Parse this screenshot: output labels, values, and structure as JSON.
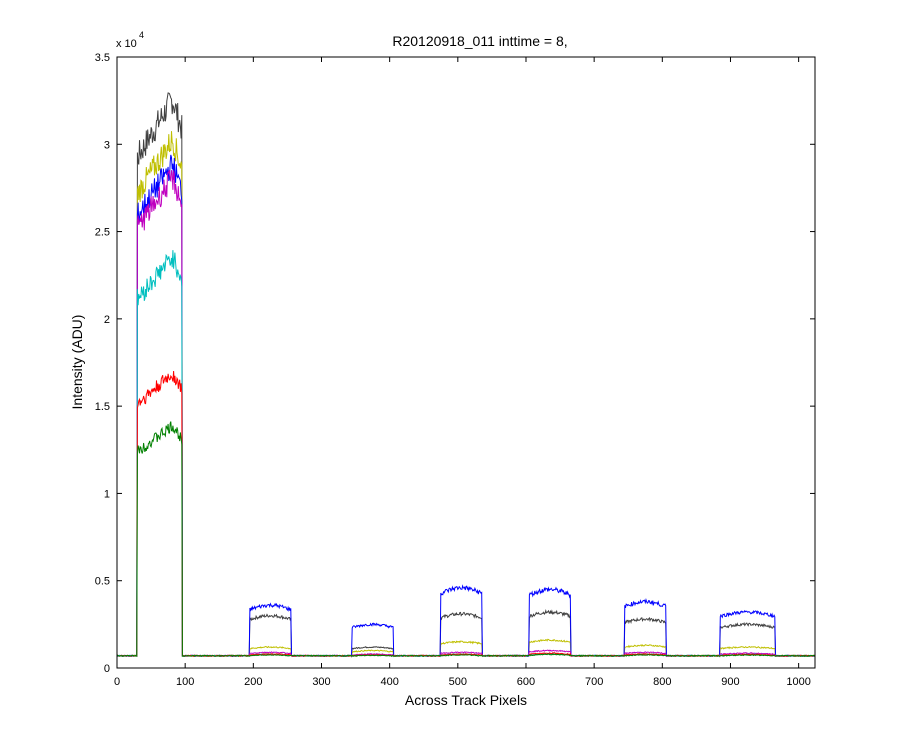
{
  "chart_data": {
    "type": "line",
    "title": "R20120918_011 inttime = 8,",
    "xlabel": "Across Track Pixels",
    "ylabel": "Intensity (ADU)",
    "xlim": [
      0,
      1024
    ],
    "ylim": [
      0,
      35000
    ],
    "y_exponent_label": "x 10",
    "y_exponent_power": "4",
    "x_ticks": [
      0,
      100,
      200,
      300,
      400,
      500,
      600,
      700,
      800,
      900,
      1000
    ],
    "x_tick_labels": [
      "0",
      "100",
      "200",
      "300",
      "400",
      "500",
      "600",
      "700",
      "800",
      "900",
      "1000"
    ],
    "y_ticks": [
      0,
      5000,
      10000,
      15000,
      20000,
      25000,
      30000,
      35000
    ],
    "y_tick_labels": [
      "0",
      "0.5",
      "1",
      "1.5",
      "2",
      "2.5",
      "3",
      "3.5"
    ],
    "grid": false,
    "legend": "none",
    "baseline": 700,
    "segments": [
      [
        30,
        95
      ],
      [
        195,
        255
      ],
      [
        345,
        405
      ],
      [
        475,
        535
      ],
      [
        605,
        665
      ],
      [
        745,
        805
      ],
      [
        885,
        965
      ]
    ],
    "series": [
      {
        "color": "#404040",
        "levels": [
          32500,
          3000,
          1200,
          3100,
          3200,
          2800,
          2500
        ]
      },
      {
        "color": "#bfbf00",
        "levels": [
          30200,
          1200,
          1000,
          1500,
          1600,
          1300,
          1200
        ]
      },
      {
        "color": "#0000ff",
        "levels": [
          28800,
          3600,
          2500,
          4600,
          4500,
          3800,
          3200
        ]
      },
      {
        "color": "#bf00bf",
        "levels": [
          28000,
          900,
          800,
          900,
          1000,
          900,
          850
        ]
      },
      {
        "color": "#00bfbf",
        "levels": [
          23500,
          800,
          750,
          800,
          800,
          800,
          780
        ]
      },
      {
        "color": "#ff0000",
        "levels": [
          16800,
          800,
          750,
          800,
          850,
          800,
          780
        ]
      },
      {
        "color": "#008000",
        "levels": [
          13800,
          750,
          720,
          750,
          780,
          750,
          740
        ]
      }
    ]
  }
}
